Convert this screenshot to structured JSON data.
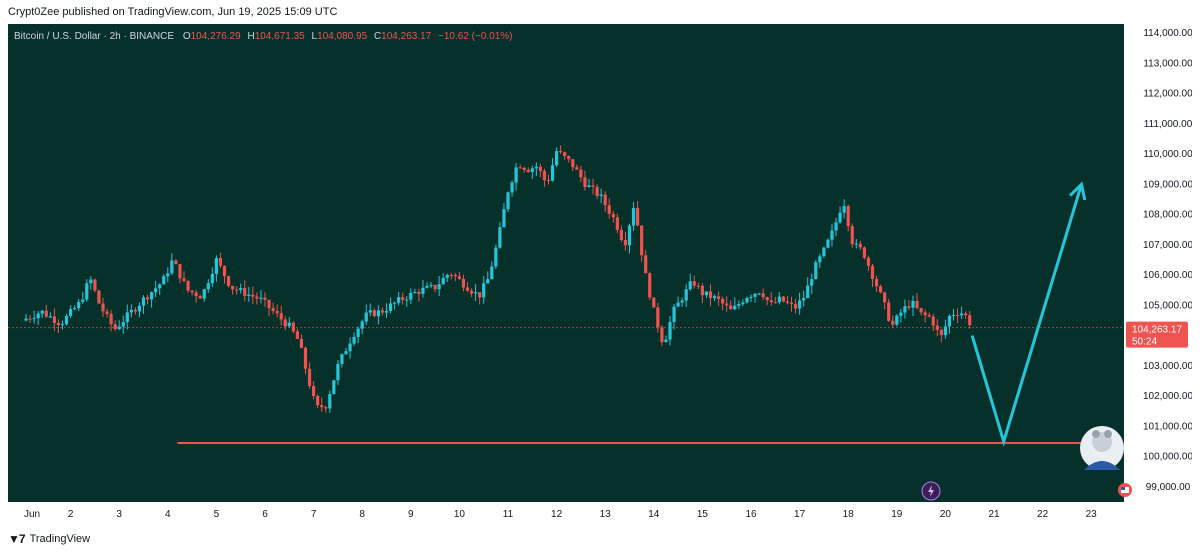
{
  "header": {
    "published": "Crypt0Zee published on TradingView.com, Jun 19, 2025 15:09 UTC"
  },
  "legend": {
    "symbol": "Bitcoin / U.S. Dollar · 2h · BINANCE",
    "o_label": "O",
    "o_value": "104,276.29",
    "h_label": "H",
    "h_value": "104,671.35",
    "l_label": "L",
    "l_value": "104,080.95",
    "c_label": "C",
    "c_value": "104,263.17",
    "change": "−10.62 (−0.01%)"
  },
  "footer": {
    "brand": "TradingView"
  },
  "colors": {
    "bg": "#06302a",
    "up": "#26c6da",
    "down": "#ef5350",
    "line": "#ef5350",
    "arrow": "#26c6da",
    "price_tag": "#ef5350"
  },
  "chart_data": {
    "type": "candlestick",
    "title": "Bitcoin / U.S. Dollar · 2h · BINANCE",
    "ylim": [
      98500,
      114300
    ],
    "y_ticks": [
      "114,000.00",
      "113,000.00",
      "112,000.00",
      "111,000.00",
      "110,000.00",
      "109,000.00",
      "108,000.00",
      "107,000.00",
      "106,000.00",
      "105,000.00",
      "103,000.00",
      "102,000.00",
      "101,000.00",
      "100,000.00",
      "99,000.00"
    ],
    "x_ticks": [
      "Jun",
      "2",
      "3",
      "4",
      "5",
      "6",
      "7",
      "8",
      "9",
      "10",
      "11",
      "12",
      "13",
      "14",
      "15",
      "16",
      "17",
      "18",
      "19",
      "20",
      "21",
      "22",
      "23"
    ],
    "current_price": {
      "value": 104263.17,
      "label": "104,263.17",
      "countdown": "50:24"
    },
    "support_line": {
      "price": 100450,
      "from_day": 3.2,
      "to_day": 22.2
    },
    "projection": [
      {
        "day": 19.55,
        "price": 104000
      },
      {
        "day": 20.2,
        "price": 100500
      },
      {
        "day": 21.8,
        "price": 109000
      }
    ],
    "price_path": [
      [
        0.0,
        104500
      ],
      [
        0.4,
        104800
      ],
      [
        0.8,
        104400
      ],
      [
        1.2,
        105100
      ],
      [
        1.4,
        105900
      ],
      [
        1.6,
        105000
      ],
      [
        1.9,
        104200
      ],
      [
        2.2,
        104700
      ],
      [
        2.5,
        105200
      ],
      [
        2.9,
        105800
      ],
      [
        3.1,
        106500
      ],
      [
        3.4,
        105500
      ],
      [
        3.7,
        105300
      ],
      [
        4.0,
        106500
      ],
      [
        4.3,
        105600
      ],
      [
        4.6,
        105400
      ],
      [
        4.9,
        105200
      ],
      [
        5.1,
        104900
      ],
      [
        5.3,
        104600
      ],
      [
        5.5,
        104300
      ],
      [
        5.7,
        103800
      ],
      [
        5.9,
        102500
      ],
      [
        6.05,
        101600
      ],
      [
        6.25,
        101700
      ],
      [
        6.5,
        103000
      ],
      [
        6.8,
        104000
      ],
      [
        7.1,
        104700
      ],
      [
        7.4,
        104800
      ],
      [
        7.8,
        105200
      ],
      [
        8.2,
        105500
      ],
      [
        8.5,
        105600
      ],
      [
        8.8,
        106100
      ],
      [
        9.1,
        105700
      ],
      [
        9.4,
        105300
      ],
      [
        9.6,
        105900
      ],
      [
        9.8,
        107200
      ],
      [
        10.0,
        108800
      ],
      [
        10.2,
        109700
      ],
      [
        10.4,
        109500
      ],
      [
        10.6,
        109600
      ],
      [
        10.8,
        109000
      ],
      [
        11.0,
        110100
      ],
      [
        11.3,
        109700
      ],
      [
        11.6,
        109000
      ],
      [
        11.9,
        108600
      ],
      [
        12.2,
        107800
      ],
      [
        12.4,
        107000
      ],
      [
        12.6,
        108400
      ],
      [
        12.8,
        106200
      ],
      [
        13.0,
        104800
      ],
      [
        13.2,
        103700
      ],
      [
        13.4,
        104800
      ],
      [
        13.6,
        105300
      ],
      [
        13.8,
        105800
      ],
      [
        14.0,
        105400
      ],
      [
        14.3,
        105200
      ],
      [
        14.6,
        104800
      ],
      [
        14.9,
        105300
      ],
      [
        15.2,
        105500
      ],
      [
        15.4,
        105000
      ],
      [
        15.6,
        105200
      ],
      [
        15.9,
        104900
      ],
      [
        16.1,
        105300
      ],
      [
        16.3,
        106200
      ],
      [
        16.5,
        106800
      ],
      [
        16.7,
        107500
      ],
      [
        16.9,
        108500
      ],
      [
        17.1,
        107000
      ],
      [
        17.3,
        106800
      ],
      [
        17.5,
        106000
      ],
      [
        17.7,
        105200
      ],
      [
        17.9,
        104300
      ],
      [
        18.1,
        104800
      ],
      [
        18.3,
        105100
      ],
      [
        18.5,
        104700
      ],
      [
        18.7,
        104600
      ],
      [
        18.9,
        103900
      ],
      [
        19.1,
        104700
      ],
      [
        19.3,
        104800
      ],
      [
        19.45,
        104600
      ],
      [
        19.55,
        104263
      ]
    ]
  }
}
